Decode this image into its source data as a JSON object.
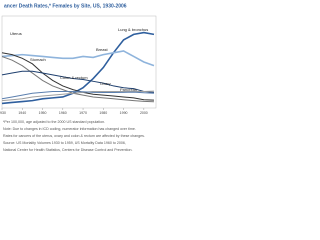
{
  "chart_data": {
    "type": "line",
    "title": "ancer Death Rates,* Females by Site, US, 1930-2006",
    "x": [
      1930,
      1935,
      1940,
      1945,
      1950,
      1955,
      1960,
      1965,
      1970,
      1975,
      1980,
      1985,
      1990,
      1995,
      2000,
      2005
    ],
    "xlim": [
      1930,
      2006
    ],
    "xticks": [
      1930,
      1940,
      1950,
      1960,
      1970,
      1980,
      1990,
      2000
    ],
    "ylim": [
      0,
      50
    ],
    "series": [
      {
        "name": "Lung & bronchus",
        "color": "#2f5f9e",
        "values": [
          2.5,
          3,
          3.5,
          4,
          5,
          5.5,
          6,
          8,
          11,
          16,
          22,
          30,
          37,
          40,
          41,
          40
        ]
      },
      {
        "name": "Breast",
        "color": "#8fb4dc",
        "values": [
          28,
          28.5,
          29,
          28.5,
          28,
          27.5,
          27,
          27,
          28,
          27.5,
          29,
          30,
          31,
          28,
          25,
          23
        ]
      },
      {
        "name": "Uterus",
        "color": "#333333",
        "values": [
          30,
          29,
          27,
          24,
          19,
          15,
          12,
          10,
          8.5,
          7.5,
          7,
          6.5,
          6,
          5.5,
          4.5,
          4.3
        ]
      },
      {
        "name": "Stomach",
        "color": "#777777",
        "values": [
          28,
          26,
          23,
          19,
          15,
          12,
          10,
          8,
          7,
          6,
          5.5,
          5,
          4.5,
          4,
          3.6,
          3.4
        ]
      },
      {
        "name": "Colon & rectum",
        "color": "#1e3f6e",
        "values": [
          18,
          19,
          20,
          20,
          19,
          18,
          17,
          16,
          15.5,
          14.5,
          13.5,
          12,
          11,
          10.5,
          9,
          8.5
        ]
      },
      {
        "name": "Pancreas",
        "color": "#a0a0a0",
        "values": [
          4,
          4.5,
          5,
          6,
          6.5,
          7,
          7.5,
          8,
          8.5,
          9,
          9,
          9,
          9,
          9,
          9,
          9.2
        ]
      },
      {
        "name": "Ovary",
        "color": "#5b7fae",
        "values": [
          5,
          6,
          7,
          8,
          8.5,
          9,
          9,
          9,
          8.8,
          8.5,
          8.4,
          8.4,
          8.5,
          8.6,
          8.3,
          8
        ]
      }
    ],
    "footnotes": [
      "*Per 100,000, age adjusted to the 2000 US standard population.",
      "Note: Due to changes in ICD coding, numerator information has changed over time.",
      "Rates for cancers of the uterus, ovary and colon & rectum are affected by these changes.",
      "Source: US Mortality Volumes 1930 to 1959, US Mortality Data 1960 to 2006,",
      "National Center for Health Statistics, Centers for Disease Control and Prevention."
    ]
  }
}
